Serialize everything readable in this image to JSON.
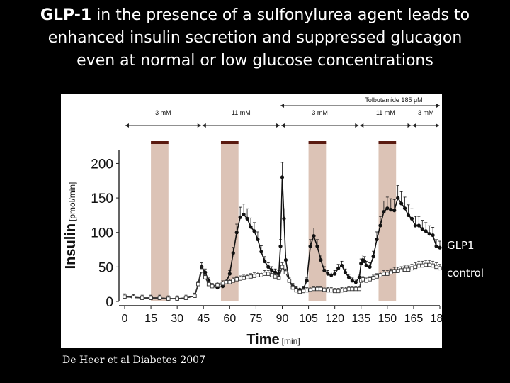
{
  "slide": {
    "title_bold": "GLP-1",
    "title_line1_rest": " in the presence of a sulfonylurea agent leads to",
    "title_line2": "enhanced insulin secretion and suppressed glucagon",
    "title_line3": "even at normal or low glucose concentrations",
    "citation": "De Heer et al Diabetes 2007"
  },
  "colors": {
    "background": "#000000",
    "panel": "#ffffff",
    "glp1_band": "#dcc3b6",
    "series_glp1": "#111111",
    "series_control": "#333333"
  },
  "chart_data": {
    "type": "line",
    "title": "",
    "xlabel": "Time",
    "xlabel_unit": "[min]",
    "ylabel": "Insulin",
    "ylabel_unit": "[pmol/min]",
    "xlim": [
      0,
      180
    ],
    "ylim": [
      0,
      220
    ],
    "x_ticks": [
      0,
      15,
      30,
      45,
      60,
      75,
      90,
      105,
      120,
      135,
      150,
      165,
      180
    ],
    "y_ticks": [
      0,
      50,
      100,
      150,
      200
    ],
    "grid": false,
    "infusion_periods": [
      [
        15,
        25
      ],
      [
        55,
        65
      ],
      [
        105,
        115
      ],
      [
        145,
        155
      ]
    ],
    "glucose_annotations": {
      "segments": [
        {
          "label": "3 mM",
          "from": 0,
          "to": 44
        },
        {
          "label": "11 mM",
          "from": 44,
          "to": 89
        },
        {
          "label": "3 mM",
          "from": 89,
          "to": 134
        },
        {
          "label": "11 mM",
          "from": 134,
          "to": 164
        },
        {
          "label": "3 mM",
          "from": 164,
          "to": 180
        }
      ],
      "bracket": {
        "label": "Tolbutamide 185 μM",
        "from": 89,
        "to": 180
      }
    },
    "series": [
      {
        "name": "GLP1",
        "x": [
          0,
          5,
          10,
          15,
          20,
          25,
          30,
          35,
          40,
          42,
          44,
          46,
          48,
          50,
          53,
          56,
          58,
          60,
          62,
          64,
          66,
          68,
          70,
          72,
          74,
          76,
          78,
          80,
          82,
          84,
          86,
          88,
          89,
          90,
          91,
          92,
          94,
          96,
          98,
          100,
          102,
          104,
          106,
          108,
          110,
          112,
          114,
          116,
          118,
          120,
          122,
          124,
          126,
          128,
          130,
          132,
          134,
          135,
          136,
          137,
          138,
          140,
          142,
          144,
          146,
          148,
          150,
          152,
          154,
          156,
          158,
          160,
          162,
          164,
          166,
          168,
          170,
          172,
          174,
          176,
          178,
          180
        ],
        "y": [
          7,
          6,
          5,
          5,
          5,
          4,
          4,
          5,
          8,
          25,
          50,
          42,
          30,
          22,
          20,
          22,
          28,
          40,
          70,
          100,
          122,
          126,
          120,
          108,
          102,
          90,
          72,
          58,
          50,
          45,
          42,
          40,
          80,
          180,
          120,
          60,
          30,
          22,
          18,
          17,
          18,
          30,
          80,
          95,
          80,
          60,
          45,
          40,
          38,
          40,
          48,
          52,
          42,
          35,
          30,
          28,
          35,
          55,
          60,
          58,
          52,
          50,
          65,
          90,
          110,
          130,
          135,
          133,
          132,
          150,
          142,
          135,
          125,
          120,
          110,
          110,
          105,
          102,
          98,
          96,
          80,
          78
        ]
      },
      {
        "name": "control",
        "x": [
          0,
          5,
          10,
          15,
          20,
          25,
          30,
          35,
          40,
          42,
          44,
          46,
          48,
          50,
          53,
          56,
          58,
          60,
          62,
          64,
          66,
          68,
          70,
          72,
          74,
          76,
          78,
          80,
          82,
          84,
          86,
          88,
          90,
          92,
          94,
          96,
          98,
          100,
          102,
          104,
          106,
          108,
          110,
          112,
          114,
          116,
          118,
          120,
          122,
          124,
          126,
          128,
          130,
          132,
          134,
          135,
          136,
          138,
          140,
          142,
          144,
          146,
          148,
          150,
          152,
          154,
          156,
          158,
          160,
          162,
          164,
          166,
          168,
          170,
          172,
          174,
          176,
          178,
          180
        ],
        "y": [
          7,
          6,
          5,
          5,
          5,
          4,
          4,
          5,
          8,
          25,
          45,
          35,
          25,
          22,
          24,
          26,
          28,
          28,
          30,
          32,
          33,
          34,
          35,
          36,
          37,
          38,
          38,
          40,
          40,
          38,
          36,
          34,
          50,
          42,
          30,
          20,
          16,
          14,
          15,
          16,
          17,
          18,
          18,
          18,
          17,
          16,
          16,
          15,
          15,
          16,
          17,
          18,
          18,
          18,
          18,
          30,
          32,
          30,
          32,
          34,
          36,
          38,
          40,
          40,
          42,
          44,
          44,
          45,
          46,
          46,
          48,
          50,
          52,
          52,
          53,
          53,
          52,
          50,
          48
        ]
      }
    ]
  }
}
